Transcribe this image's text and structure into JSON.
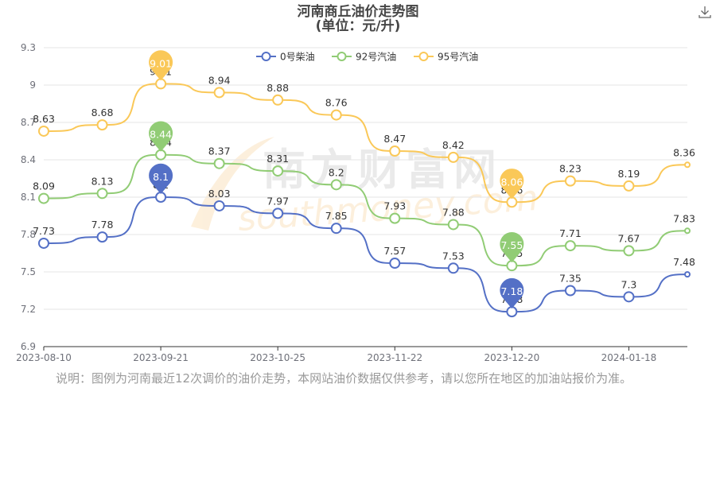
{
  "chart_data": {
    "type": "line",
    "title": "河南商丘油价走势图",
    "subtitle": "(单位：元/升)",
    "x": [
      "2023-08-10",
      "2023-08-30",
      "2023-09-21",
      "2023-10-09",
      "2023-10-25",
      "2023-11-08",
      "2023-11-22",
      "2023-12-06",
      "2023-12-20",
      "2024-01-03",
      "2024-01-18",
      "2024-01-31"
    ],
    "xticks": [
      "2023-08-10",
      "2023-09-21",
      "2023-10-25",
      "2023-11-22",
      "2023-12-20",
      "2024-01-18"
    ],
    "ylim": [
      6.9,
      9.3
    ],
    "yticks": [
      "6.9",
      "7.2",
      "7.5",
      "7.8",
      "8.1",
      "8.4",
      "8.7",
      "9",
      "9.3"
    ],
    "grid": true,
    "legend_position": "top",
    "series": [
      {
        "name": "0号柴油",
        "color": "#5470c6",
        "values": [
          7.73,
          7.78,
          8.1,
          8.03,
          7.97,
          7.85,
          7.57,
          7.53,
          7.18,
          7.35,
          7.3,
          7.48
        ],
        "max_marker": "8.1",
        "min_marker": "7.18"
      },
      {
        "name": "92号汽油",
        "color": "#91cc75",
        "values": [
          8.09,
          8.13,
          8.44,
          8.37,
          8.31,
          8.2,
          7.93,
          7.88,
          7.55,
          7.71,
          7.67,
          7.83
        ],
        "max_marker": "8.44",
        "min_marker": "7.55"
      },
      {
        "name": "95号汽油",
        "color": "#fac858",
        "values": [
          8.63,
          8.68,
          9.01,
          8.94,
          8.88,
          8.76,
          8.47,
          8.42,
          8.06,
          8.23,
          8.19,
          8.36
        ],
        "max_marker": "9.01",
        "min_marker": "8.06"
      }
    ]
  },
  "watermark": {
    "cn": "南方财富网",
    "en": "southmoney.com"
  },
  "note": "说明：图例为河南最近12次调价的油价走势，本网站油价数据仅供参考，请以您所在地区的加油站报价为准。",
  "toolbar": {
    "download_icon": "download-icon"
  }
}
